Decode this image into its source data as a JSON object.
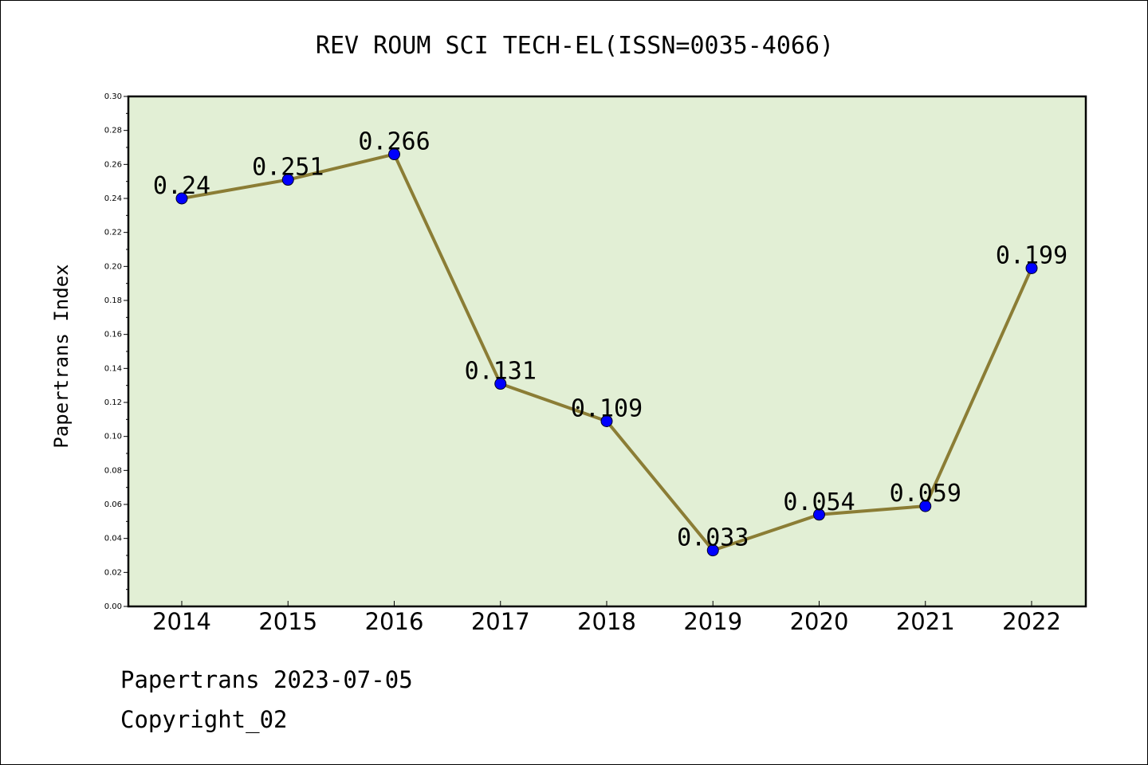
{
  "chart_data": {
    "type": "line",
    "title": "REV ROUM SCI TECH-EL(ISSN=0035-4066)",
    "xlabel": "",
    "ylabel": "Papertrans Index",
    "categories": [
      "2014",
      "2015",
      "2016",
      "2017",
      "2018",
      "2019",
      "2020",
      "2021",
      "2022"
    ],
    "series": [
      {
        "values": [
          0.24,
          0.251,
          0.266,
          0.131,
          0.109,
          0.033,
          0.054,
          0.059,
          0.199
        ],
        "labels": [
          "0.24",
          "0.251",
          "0.266",
          "0.131",
          "0.109",
          "0.033",
          "0.054",
          "0.059",
          "0.199"
        ]
      }
    ],
    "ylim": [
      0,
      0.3
    ],
    "yticks": [
      "0.00",
      "0.02",
      "0.04",
      "0.06",
      "0.08",
      "0.10",
      "0.12",
      "0.14",
      "0.16",
      "0.18",
      "0.20",
      "0.22",
      "0.24",
      "0.26",
      "0.28",
      "0.30"
    ],
    "grid": false,
    "colors": {
      "plot_background": "#e2efd5",
      "line": "#8b7d35",
      "marker": "#0000ff"
    }
  },
  "footer": {
    "line1": "Papertrans 2023-07-05",
    "line2": "Copyright_02"
  }
}
